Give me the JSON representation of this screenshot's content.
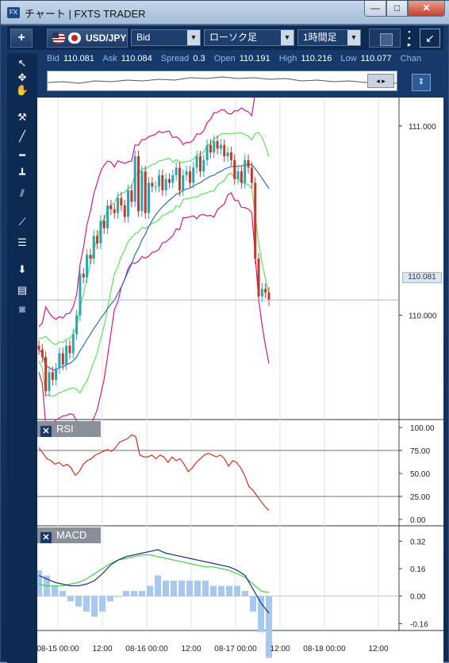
{
  "window": {
    "title": "チャート | FXTS TRADER",
    "app_icon": "FX"
  },
  "window_buttons": {
    "minimize": "—",
    "maximize": "□",
    "close": "✕"
  },
  "toolbar": {
    "add_label": "+",
    "symbol": "USD/JPY",
    "price_type": "Bid",
    "chart_type": "ローソク足",
    "period": "1時間足",
    "dropdown_glyph": "▼",
    "arrow_glyph": "↙"
  },
  "quote": {
    "bid_label": "Bid",
    "bid": "110.081",
    "ask_label": "Ask",
    "ask": "110.084",
    "spread_label": "Spread",
    "spread": "0.3",
    "open_label": "Open",
    "open": "110.191",
    "high_label": "High",
    "high": "110.216",
    "low_label": "Low",
    "low": "110.077",
    "change_label": "Chan"
  },
  "overview": {
    "handle_glyph": "◂ ▸"
  },
  "colors": {
    "bull": "#2aa6b0",
    "bear": "#c0392b",
    "bb_outer": "#d01a8a",
    "bb_inner": "#5ee060",
    "ma_long": "#2f6fb0",
    "rsi": "#d03020",
    "macd": "#1a2a80",
    "signal": "#3ed040",
    "hist": "#a8c8f0"
  },
  "icons": {
    "tools": [
      "cursor-icon",
      "crosshair-icon",
      "hand-icon",
      "pin-icon",
      "line-icon",
      "horizontal-line-icon",
      "vertical-line-icon",
      "channel-icon",
      "fan-icon",
      "fibonacci-icon",
      "download-icon",
      "list-icon",
      "camera-icon"
    ]
  },
  "panels": {
    "rsi_label": "RSI",
    "macd_label": "MACD",
    "close_glyph": "✕"
  },
  "price_axis": {
    "labels": [
      "111.000",
      "110.000"
    ],
    "current": "110.081"
  },
  "rsi_axis": [
    "100.00",
    "75.00",
    "50.00",
    "25.00",
    "0.00"
  ],
  "macd_axis": [
    "0.32",
    "0.16",
    "0.00",
    "-0.16"
  ],
  "time_axis": [
    "08-15 00:00",
    "12:00",
    "08-16 00:00",
    "12:00",
    "08-17 00:00",
    "12:00",
    "08-18 00:00",
    "12:00"
  ],
  "chart_data": [
    {
      "type": "line",
      "title": "",
      "name": "USD/JPY 1時間足 (candlestick + Bollinger)",
      "ylim": [
        109.45,
        111.15
      ],
      "series": [
        {
          "name": "close",
          "values": [
            109.82,
            109.78,
            109.6,
            109.7,
            109.66,
            109.72,
            109.8,
            109.74,
            109.84,
            109.8,
            109.9,
            110.0,
            110.22,
            110.2,
            110.32,
            110.3,
            110.42,
            110.38,
            110.5,
            110.46,
            110.58,
            110.56,
            110.54,
            110.62,
            110.58,
            110.52,
            110.66,
            110.6,
            110.84,
            110.55,
            110.76,
            110.54,
            110.7,
            110.68,
            110.68,
            110.74,
            110.66,
            110.72,
            110.7,
            110.74,
            110.78,
            110.66,
            110.74,
            110.76,
            110.7,
            110.78,
            110.84,
            110.76,
            110.82,
            110.9,
            110.86,
            110.92,
            110.88,
            110.9,
            110.84,
            110.86,
            110.82,
            110.72,
            110.76,
            110.7,
            110.82,
            110.78,
            110.7,
            110.3,
            110.1,
            110.14,
            110.12,
            110.08
          ]
        }
      ]
    },
    {
      "type": "line",
      "title": "",
      "name": "RSI",
      "ylim": [
        0,
        100
      ],
      "series": [
        {
          "name": "RSI",
          "values": [
            78,
            72,
            66,
            64,
            60,
            62,
            58,
            60,
            56,
            48,
            52,
            60,
            64,
            66,
            70,
            72,
            74,
            76,
            74,
            78,
            84,
            86,
            88,
            92,
            90,
            70,
            68,
            68,
            70,
            66,
            70,
            68,
            62,
            68,
            64,
            66,
            60,
            52,
            56,
            62,
            66,
            70,
            72,
            70,
            68,
            70,
            66,
            58,
            64,
            62,
            56,
            48,
            36,
            32,
            26,
            20,
            14,
            10
          ]
        }
      ]
    },
    {
      "type": "line",
      "title": "",
      "name": "MACD",
      "ylim": [
        -0.2,
        0.4
      ],
      "series": [
        {
          "name": "MACD",
          "values": [
            0.12,
            0.1,
            0.08,
            0.07,
            0.06,
            0.06,
            0.07,
            0.09,
            0.13,
            0.18,
            0.21,
            0.23,
            0.24,
            0.25,
            0.26,
            0.27,
            0.25,
            0.24,
            0.23,
            0.22,
            0.21,
            0.2,
            0.19,
            0.18,
            0.17,
            0.15,
            0.12,
            0.04,
            -0.04,
            -0.1
          ]
        },
        {
          "name": "Signal",
          "values": [
            0.07,
            0.06,
            0.06,
            0.06,
            0.07,
            0.08,
            0.1,
            0.13,
            0.16,
            0.19,
            0.21,
            0.22,
            0.23,
            0.24,
            0.24,
            0.23,
            0.22,
            0.21,
            0.2,
            0.19,
            0.18,
            0.17,
            0.17,
            0.16,
            0.15,
            0.13,
            0.11,
            0.07,
            0.03,
            0.02
          ]
        },
        {
          "name": "Histogram",
          "values": [
            0.05,
            0.04,
            0.02,
            0.01,
            -0.01,
            -0.02,
            -0.03,
            -0.04,
            -0.03,
            -0.01,
            0.0,
            0.01,
            0.01,
            0.01,
            0.02,
            0.04,
            0.03,
            0.03,
            0.03,
            0.03,
            0.03,
            0.03,
            0.02,
            0.02,
            0.02,
            0.02,
            0.01,
            -0.03,
            -0.07,
            -0.12
          ]
        }
      ]
    }
  ]
}
